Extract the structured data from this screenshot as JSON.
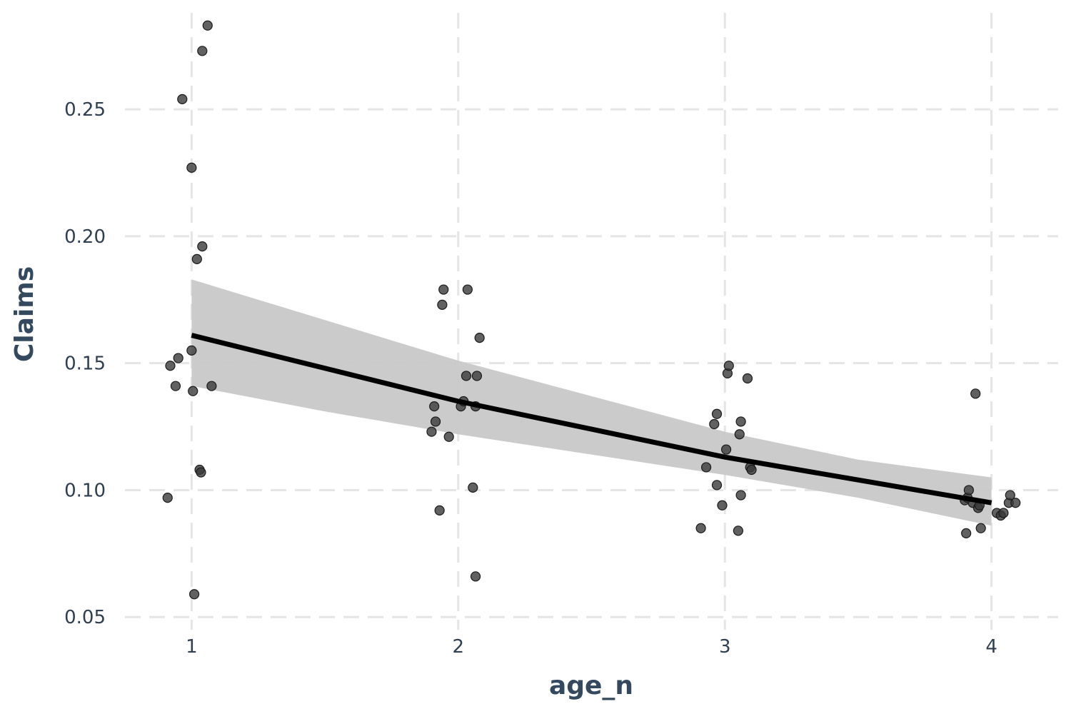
{
  "chart_data": {
    "type": "scatter",
    "title": "",
    "xlabel": "age_n",
    "ylabel": "Claims",
    "xlim": [
      0.75,
      4.25
    ],
    "ylim": [
      0.045,
      0.288
    ],
    "x_ticks": [
      1,
      2,
      3,
      4
    ],
    "y_ticks": [
      0.05,
      0.1,
      0.15,
      0.2,
      0.25
    ],
    "x_tick_labels": [
      "1",
      "2",
      "3",
      "4"
    ],
    "y_tick_labels": [
      "0.05",
      "0.10",
      "0.15",
      "0.20",
      "0.25"
    ],
    "grid": true,
    "legend": "none",
    "point_color": "#3a3a3a",
    "fit_color": "#000000",
    "ribbon_color": "#c8c8c8",
    "points": [
      {
        "x": 0.91,
        "y": 0.097
      },
      {
        "x": 0.92,
        "y": 0.149
      },
      {
        "x": 0.94,
        "y": 0.141
      },
      {
        "x": 0.95,
        "y": 0.152
      },
      {
        "x": 0.965,
        "y": 0.254
      },
      {
        "x": 1.0,
        "y": 0.227
      },
      {
        "x": 1.0,
        "y": 0.155
      },
      {
        "x": 1.005,
        "y": 0.139
      },
      {
        "x": 1.01,
        "y": 0.059
      },
      {
        "x": 1.02,
        "y": 0.191
      },
      {
        "x": 1.03,
        "y": 0.108
      },
      {
        "x": 1.035,
        "y": 0.107
      },
      {
        "x": 1.04,
        "y": 0.273
      },
      {
        "x": 1.04,
        "y": 0.196
      },
      {
        "x": 1.06,
        "y": 0.283
      },
      {
        "x": 1.075,
        "y": 0.141
      },
      {
        "x": 1.9,
        "y": 0.123
      },
      {
        "x": 1.91,
        "y": 0.133
      },
      {
        "x": 1.915,
        "y": 0.127
      },
      {
        "x": 1.93,
        "y": 0.092
      },
      {
        "x": 1.94,
        "y": 0.173
      },
      {
        "x": 1.945,
        "y": 0.179
      },
      {
        "x": 1.965,
        "y": 0.121
      },
      {
        "x": 2.01,
        "y": 0.133
      },
      {
        "x": 2.02,
        "y": 0.135
      },
      {
        "x": 2.03,
        "y": 0.145
      },
      {
        "x": 2.035,
        "y": 0.179
      },
      {
        "x": 2.055,
        "y": 0.101
      },
      {
        "x": 2.065,
        "y": 0.133
      },
      {
        "x": 2.065,
        "y": 0.066
      },
      {
        "x": 2.07,
        "y": 0.145
      },
      {
        "x": 2.08,
        "y": 0.16
      },
      {
        "x": 2.91,
        "y": 0.085
      },
      {
        "x": 2.93,
        "y": 0.109
      },
      {
        "x": 2.96,
        "y": 0.126
      },
      {
        "x": 2.97,
        "y": 0.13
      },
      {
        "x": 2.97,
        "y": 0.102
      },
      {
        "x": 2.99,
        "y": 0.094
      },
      {
        "x": 3.005,
        "y": 0.116
      },
      {
        "x": 3.01,
        "y": 0.146
      },
      {
        "x": 3.015,
        "y": 0.149
      },
      {
        "x": 3.05,
        "y": 0.084
      },
      {
        "x": 3.055,
        "y": 0.122
      },
      {
        "x": 3.06,
        "y": 0.127
      },
      {
        "x": 3.06,
        "y": 0.098
      },
      {
        "x": 3.085,
        "y": 0.144
      },
      {
        "x": 3.095,
        "y": 0.109
      },
      {
        "x": 3.1,
        "y": 0.108
      },
      {
        "x": 3.9,
        "y": 0.096
      },
      {
        "x": 3.905,
        "y": 0.083
      },
      {
        "x": 3.91,
        "y": 0.097
      },
      {
        "x": 3.915,
        "y": 0.1
      },
      {
        "x": 3.93,
        "y": 0.095
      },
      {
        "x": 3.94,
        "y": 0.138
      },
      {
        "x": 3.95,
        "y": 0.093
      },
      {
        "x": 3.955,
        "y": 0.094
      },
      {
        "x": 3.96,
        "y": 0.085
      },
      {
        "x": 4.02,
        "y": 0.091
      },
      {
        "x": 4.035,
        "y": 0.09
      },
      {
        "x": 4.045,
        "y": 0.091
      },
      {
        "x": 4.065,
        "y": 0.095
      },
      {
        "x": 4.07,
        "y": 0.098
      },
      {
        "x": 4.09,
        "y": 0.095
      }
    ],
    "fit": {
      "x": [
        1.0,
        1.5,
        2.0,
        2.5,
        3.0,
        3.5,
        4.0
      ],
      "y": [
        0.161,
        0.148,
        0.135,
        0.124,
        0.113,
        0.104,
        0.095
      ],
      "lower": [
        0.141,
        0.131,
        0.122,
        0.114,
        0.106,
        0.097,
        0.086
      ],
      "upper": [
        0.183,
        0.167,
        0.151,
        0.137,
        0.123,
        0.112,
        0.105
      ]
    }
  }
}
